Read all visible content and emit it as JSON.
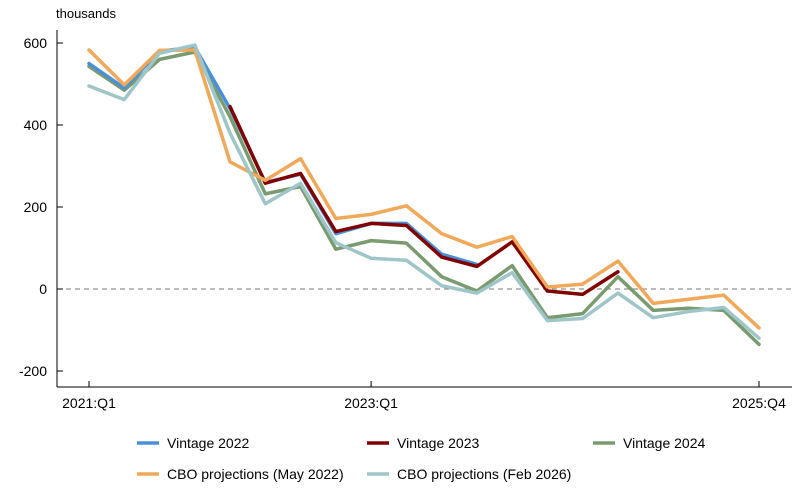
{
  "chart_data": {
    "type": "line",
    "y_unit_label": "thousands",
    "x": [
      "2021:Q1",
      "2021:Q2",
      "2021:Q3",
      "2021:Q4",
      "2022:Q1",
      "2022:Q2",
      "2022:Q3",
      "2022:Q4",
      "2023:Q1",
      "2023:Q2",
      "2023:Q3",
      "2023:Q4",
      "2024:Q1",
      "2024:Q2",
      "2024:Q3",
      "2024:Q4",
      "2025:Q1",
      "2025:Q2",
      "2025:Q3",
      "2025:Q4"
    ],
    "x_tick_labels": [
      {
        "index": 0,
        "label": "2021:Q1"
      },
      {
        "index": 8,
        "label": "2023:Q1"
      },
      {
        "index": 19,
        "label": "2025:Q4"
      }
    ],
    "ylim": [
      -200,
      650
    ],
    "y_ticks": [
      -200,
      0,
      200,
      400,
      600
    ],
    "reference_line": 0,
    "legend_position": "bottom",
    "series": [
      {
        "name": "Vintage 2022",
        "color": "#4a90d9",
        "values": [
          550,
          490,
          580,
          590,
          440,
          260,
          280,
          135,
          160,
          160,
          85,
          60,
          null,
          null,
          null,
          null,
          null,
          null,
          null,
          null
        ]
      },
      {
        "name": "Vintage 2023",
        "color": "#800000",
        "values": [
          null,
          null,
          null,
          null,
          445,
          258,
          282,
          140,
          160,
          155,
          78,
          55,
          115,
          -5,
          -13,
          42,
          null,
          null,
          null,
          null
        ]
      },
      {
        "name": "Vintage 2024",
        "color": "#7a9a6f",
        "values": [
          543,
          485,
          560,
          578,
          420,
          232,
          250,
          97,
          118,
          112,
          30,
          -5,
          57,
          -70,
          -60,
          30,
          -52,
          -47,
          -52,
          -135
        ]
      },
      {
        "name": "CBO projections (May 2022)",
        "color": "#f0a85a",
        "values": [
          583,
          498,
          582,
          583,
          310,
          265,
          318,
          172,
          182,
          203,
          135,
          102,
          128,
          5,
          12,
          68,
          -35,
          -25,
          -15,
          -95
        ]
      },
      {
        "name": "CBO projections (Feb 2026)",
        "color": "#9ec5c8",
        "values": [
          495,
          462,
          575,
          595,
          380,
          208,
          258,
          113,
          75,
          70,
          8,
          -10,
          40,
          -77,
          -72,
          -10,
          -70,
          -55,
          -45,
          -120
        ]
      }
    ]
  }
}
